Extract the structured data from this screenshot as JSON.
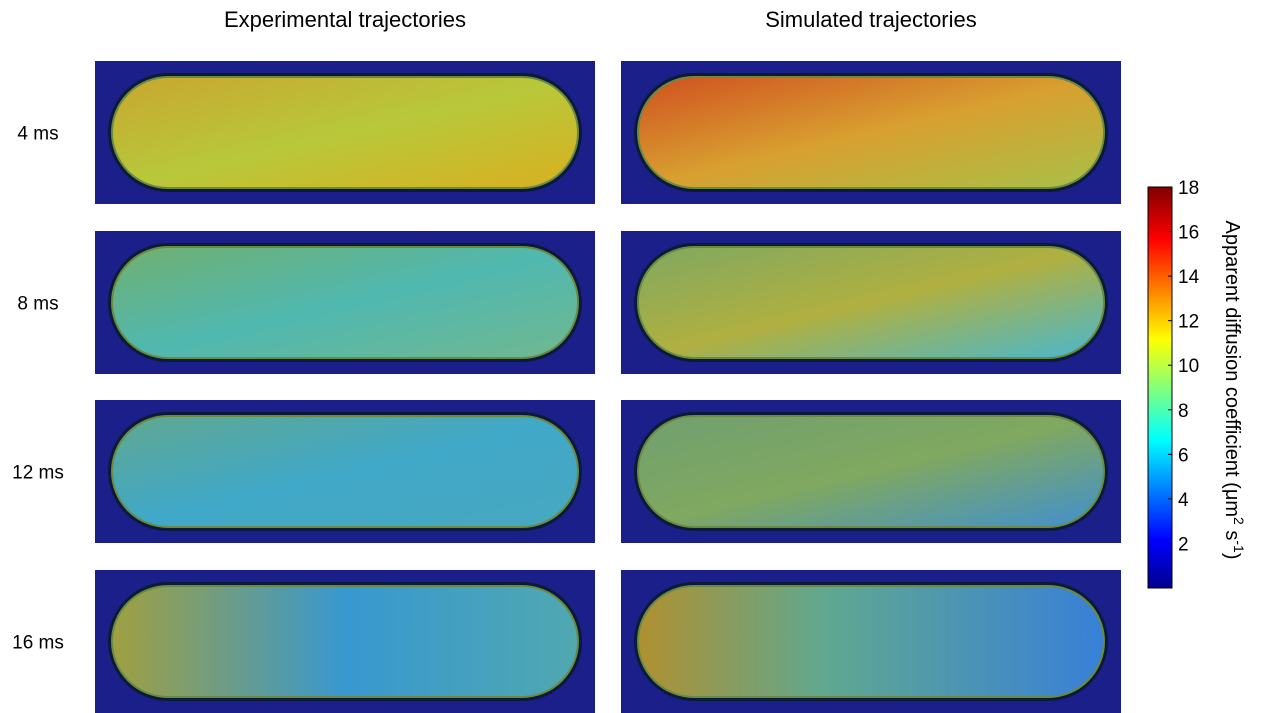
{
  "chart_data": {
    "type": "heatmap-panels",
    "column_titles": [
      "Experimental trajectories",
      "Simulated trajectories"
    ],
    "row_labels": [
      "4 ms",
      "8 ms",
      "12 ms",
      "16 ms"
    ],
    "colorbar": {
      "clim": [
        0,
        18
      ],
      "ticks": [
        2,
        4,
        6,
        8,
        10,
        12,
        14,
        16,
        18
      ],
      "label": [
        "Apparent diffusion coefficient (μm",
        "2",
        " s",
        "-1",
        ")"
      ]
    }
  }
}
